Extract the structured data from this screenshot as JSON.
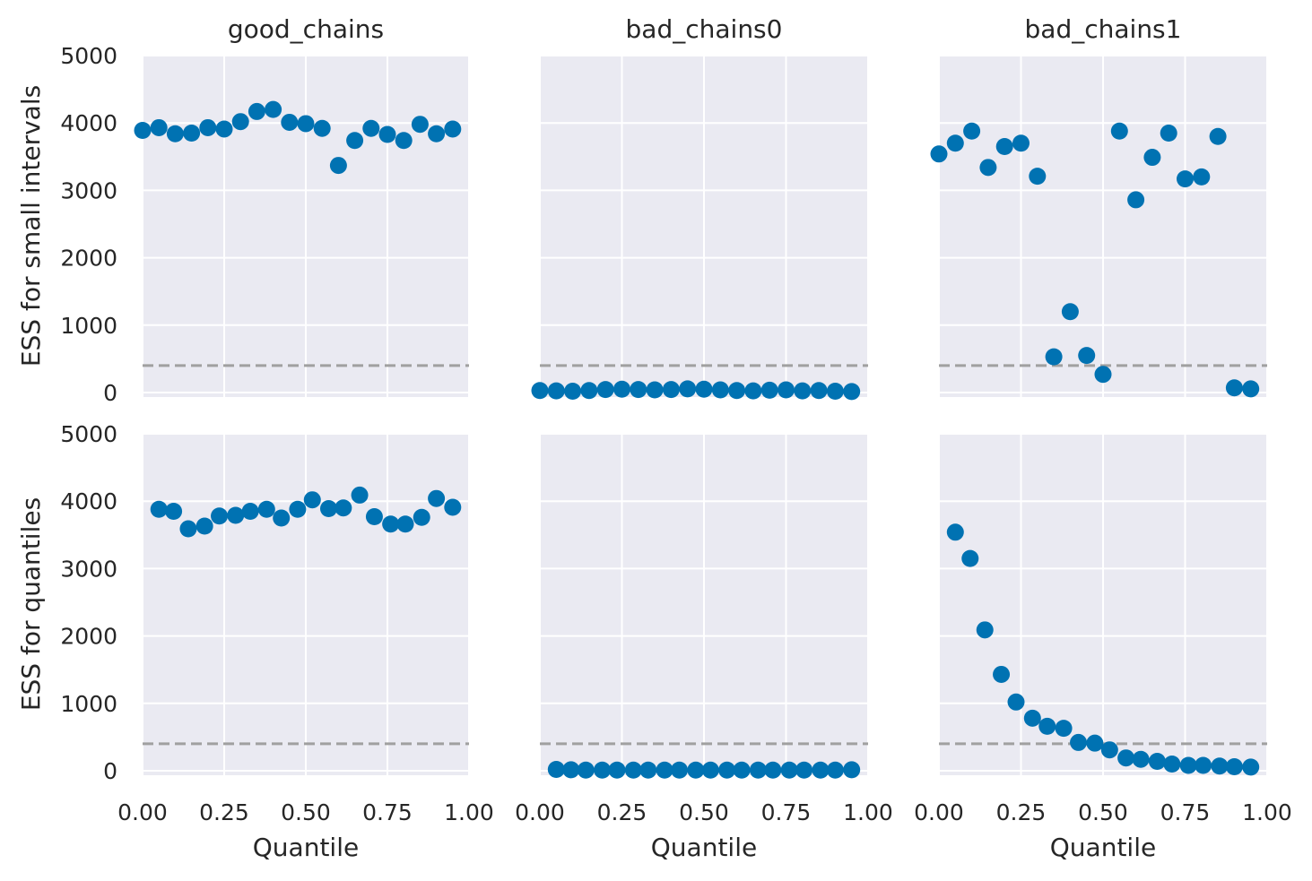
{
  "figure": {
    "colors": {
      "background": "#ffffff",
      "panel_bg": "#eaeaf2",
      "grid": "#ffffff",
      "marker": "#0072b2",
      "reference_line": "#a0a0a0",
      "text": "#262626"
    }
  },
  "chart_data": [
    {
      "type": "scatter",
      "title": "good_chains",
      "xlabel": "",
      "ylabel": "ESS for small intervals",
      "xlim": [
        0,
        1
      ],
      "ylim": [
        0,
        5000
      ],
      "xticks": [
        "0.00",
        "0.25",
        "0.50",
        "0.75",
        "1.00"
      ],
      "yticks": [
        "0",
        "1000",
        "2000",
        "3000",
        "4000",
        "5000"
      ],
      "grid": true,
      "reference_line": 400,
      "x": [
        0.0,
        0.05,
        0.1,
        0.15,
        0.2,
        0.25,
        0.3,
        0.35,
        0.4,
        0.45,
        0.5,
        0.55,
        0.6,
        0.65,
        0.7,
        0.75,
        0.8,
        0.85,
        0.9,
        0.95
      ],
      "y": [
        3890,
        3930,
        3840,
        3850,
        3930,
        3910,
        4020,
        4170,
        4200,
        4010,
        3990,
        3920,
        3370,
        3740,
        3920,
        3830,
        3740,
        3980,
        3840,
        3910
      ]
    },
    {
      "type": "scatter",
      "title": "bad_chains0",
      "xlabel": "",
      "ylabel": "",
      "xlim": [
        0,
        1
      ],
      "ylim": [
        0,
        5000
      ],
      "xticks": [
        "0.00",
        "0.25",
        "0.50",
        "0.75",
        "1.00"
      ],
      "yticks": [
        "0",
        "1000",
        "2000",
        "3000",
        "4000",
        "5000"
      ],
      "grid": true,
      "reference_line": 400,
      "x": [
        0.0,
        0.05,
        0.1,
        0.15,
        0.2,
        0.25,
        0.3,
        0.35,
        0.4,
        0.45,
        0.5,
        0.55,
        0.6,
        0.65,
        0.7,
        0.75,
        0.8,
        0.85,
        0.9,
        0.95
      ],
      "y": [
        30,
        25,
        20,
        30,
        45,
        50,
        45,
        40,
        45,
        55,
        50,
        40,
        30,
        25,
        35,
        40,
        25,
        30,
        20,
        15
      ]
    },
    {
      "type": "scatter",
      "title": "bad_chains1",
      "xlabel": "",
      "ylabel": "",
      "xlim": [
        0,
        1
      ],
      "ylim": [
        0,
        5000
      ],
      "xticks": [
        "0.00",
        "0.25",
        "0.50",
        "0.75",
        "1.00"
      ],
      "yticks": [
        "0",
        "1000",
        "2000",
        "3000",
        "4000",
        "5000"
      ],
      "grid": true,
      "reference_line": 400,
      "x": [
        0.0,
        0.05,
        0.1,
        0.15,
        0.2,
        0.25,
        0.3,
        0.35,
        0.4,
        0.45,
        0.5,
        0.55,
        0.6,
        0.65,
        0.7,
        0.75,
        0.8,
        0.85,
        0.9,
        0.95
      ],
      "y": [
        3540,
        3700,
        3880,
        3340,
        3650,
        3700,
        3210,
        530,
        1200,
        550,
        270,
        3880,
        2860,
        3490,
        3850,
        3170,
        3200,
        3800,
        70,
        55
      ]
    },
    {
      "type": "scatter",
      "title": "",
      "xlabel": "Quantile",
      "ylabel": "ESS for quantiles",
      "xlim": [
        0,
        1
      ],
      "ylim": [
        0,
        5000
      ],
      "xticks": [
        "0.00",
        "0.25",
        "0.50",
        "0.75",
        "1.00"
      ],
      "yticks": [
        "0",
        "1000",
        "2000",
        "3000",
        "4000",
        "5000"
      ],
      "grid": true,
      "reference_line": 400,
      "x": [
        0.05,
        0.095,
        0.14,
        0.19,
        0.235,
        0.285,
        0.33,
        0.38,
        0.425,
        0.475,
        0.52,
        0.57,
        0.615,
        0.665,
        0.71,
        0.76,
        0.805,
        0.855,
        0.9,
        0.95
      ],
      "y": [
        3880,
        3850,
        3590,
        3630,
        3780,
        3790,
        3850,
        3880,
        3750,
        3880,
        4020,
        3890,
        3900,
        4090,
        3770,
        3660,
        3660,
        3760,
        4040,
        3910
      ]
    },
    {
      "type": "scatter",
      "title": "",
      "xlabel": "Quantile",
      "ylabel": "",
      "xlim": [
        0,
        1
      ],
      "ylim": [
        0,
        5000
      ],
      "xticks": [
        "0.00",
        "0.25",
        "0.50",
        "0.75",
        "1.00"
      ],
      "yticks": [
        "0",
        "1000",
        "2000",
        "3000",
        "4000",
        "5000"
      ],
      "grid": true,
      "reference_line": 400,
      "x": [
        0.05,
        0.095,
        0.14,
        0.19,
        0.235,
        0.285,
        0.33,
        0.38,
        0.425,
        0.475,
        0.52,
        0.57,
        0.615,
        0.665,
        0.71,
        0.76,
        0.805,
        0.855,
        0.9,
        0.95
      ],
      "y": [
        20,
        15,
        10,
        10,
        10,
        10,
        10,
        10,
        10,
        10,
        10,
        10,
        10,
        10,
        10,
        10,
        10,
        10,
        10,
        15
      ]
    },
    {
      "type": "scatter",
      "title": "",
      "xlabel": "Quantile",
      "ylabel": "",
      "xlim": [
        0,
        1
      ],
      "ylim": [
        0,
        5000
      ],
      "xticks": [
        "0.00",
        "0.25",
        "0.50",
        "0.75",
        "1.00"
      ],
      "yticks": [
        "0",
        "1000",
        "2000",
        "3000",
        "4000",
        "5000"
      ],
      "grid": true,
      "reference_line": 400,
      "x": [
        0.05,
        0.095,
        0.14,
        0.19,
        0.235,
        0.285,
        0.33,
        0.38,
        0.425,
        0.475,
        0.52,
        0.57,
        0.615,
        0.665,
        0.71,
        0.76,
        0.805,
        0.855,
        0.9,
        0.95
      ],
      "y": [
        3540,
        3150,
        2090,
        1430,
        1020,
        780,
        660,
        630,
        420,
        410,
        310,
        190,
        170,
        140,
        100,
        80,
        80,
        70,
        60,
        55
      ]
    }
  ]
}
